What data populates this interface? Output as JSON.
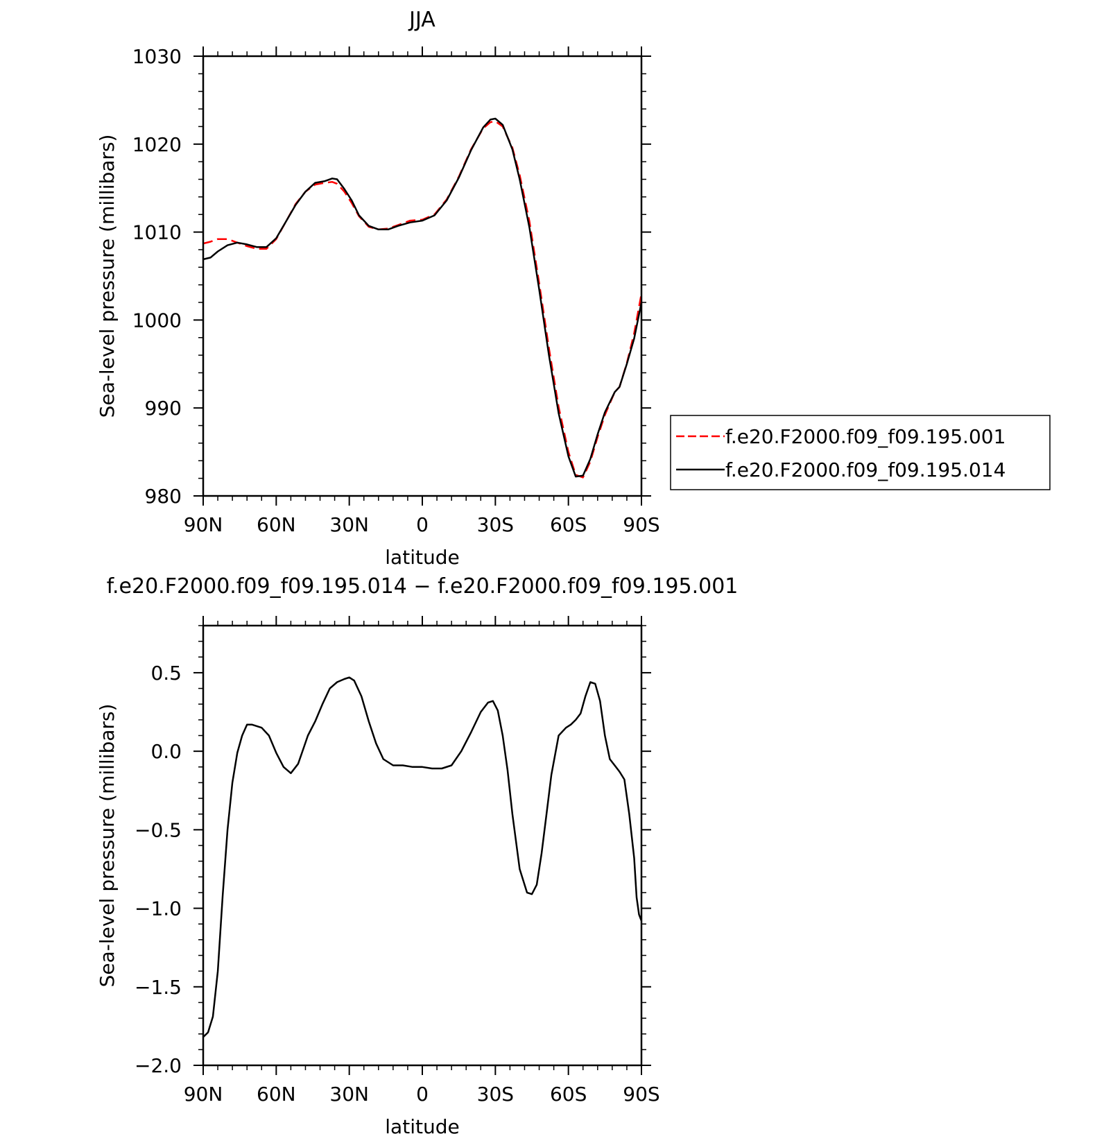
{
  "chart_data": [
    {
      "type": "line",
      "title": "JJA",
      "xlabel": "latitude",
      "ylabel": "Sea-level pressure (millibars)",
      "xlim": [
        90,
        -90
      ],
      "ylim": [
        980,
        1030
      ],
      "x_tick_values": [
        90,
        60,
        30,
        0,
        -30,
        -60,
        -90
      ],
      "x_tick_labels": [
        "90N",
        "60N",
        "30N",
        "0",
        "30S",
        "60S",
        "90S"
      ],
      "y_tick_values": [
        980,
        990,
        1000,
        1010,
        1020,
        1030
      ],
      "y_tick_labels": [
        "980",
        "990",
        "1000",
        "1010",
        "1020",
        "1030"
      ],
      "legend_position": "right",
      "series": [
        {
          "name": "f.e20.F2000.f09_f09.195.001",
          "color": "#ff0000",
          "dash": "dashed",
          "x": [
            90,
            87,
            84,
            80,
            76,
            72,
            68,
            64,
            60,
            56,
            52,
            48,
            44,
            40,
            37,
            35,
            32,
            29,
            26,
            22,
            18,
            14,
            10,
            5,
            0,
            -5,
            -10,
            -15,
            -20,
            -25,
            -28,
            -30,
            -33,
            -37,
            -40,
            -44,
            -48,
            -52,
            -56,
            -60,
            -63,
            -66,
            -69,
            -72,
            -75,
            -79,
            -81,
            -84,
            -87,
            -90
          ],
          "y": [
            1008.7,
            1008.9,
            1009.2,
            1009.2,
            1008.8,
            1008.4,
            1008.1,
            1008.1,
            1009.2,
            1011.2,
            1013.2,
            1014.6,
            1015.4,
            1015.6,
            1015.7,
            1015.5,
            1014.6,
            1013.3,
            1011.8,
            1010.6,
            1010.3,
            1010.4,
            1010.8,
            1011.3,
            1011.4,
            1012.0,
            1013.7,
            1016.3,
            1019.4,
            1021.8,
            1022.5,
            1022.6,
            1022.0,
            1019.6,
            1016.5,
            1011.2,
            1004.2,
            996.8,
            990.1,
            985.0,
            982.4,
            982.1,
            983.9,
            986.7,
            989.2,
            991.8,
            992.4,
            995.1,
            998.5,
            1003.0
          ]
        },
        {
          "name": "f.e20.F2000.f09_f09.195.014",
          "color": "#000000",
          "dash": "solid",
          "x": [
            90,
            87,
            84,
            80,
            76,
            72,
            68,
            64,
            60,
            56,
            52,
            48,
            44,
            40,
            37,
            35,
            32,
            29,
            26,
            22,
            18,
            14,
            10,
            5,
            0,
            -5,
            -10,
            -15,
            -20,
            -25,
            -28,
            -30,
            -33,
            -37,
            -40,
            -44,
            -48,
            -52,
            -56,
            -60,
            -63,
            -66,
            -69,
            -72,
            -75,
            -79,
            -81,
            -84,
            -87,
            -90
          ],
          "y": [
            1006.9,
            1007.1,
            1007.8,
            1008.5,
            1008.8,
            1008.6,
            1008.3,
            1008.3,
            1009.3,
            1011.2,
            1013.1,
            1014.6,
            1015.6,
            1015.8,
            1016.1,
            1016.0,
            1014.9,
            1013.6,
            1011.9,
            1010.7,
            1010.3,
            1010.3,
            1010.7,
            1011.1,
            1011.3,
            1011.9,
            1013.6,
            1016.2,
            1019.3,
            1021.9,
            1022.8,
            1022.9,
            1022.2,
            1019.4,
            1016.0,
            1010.5,
            1003.5,
            996.0,
            989.4,
            984.5,
            982.2,
            982.3,
            984.2,
            987.0,
            989.5,
            991.8,
            992.4,
            995.0,
            997.9,
            1002.0
          ]
        }
      ]
    },
    {
      "type": "line",
      "title": "f.e20.F2000.f09_f09.195.014 - f.e20.F2000.f09_f09.195.001",
      "xlabel": "latitude",
      "ylabel": "Sea-level pressure (millibars)",
      "xlim": [
        90,
        -90
      ],
      "ylim": [
        -2.0,
        0.8
      ],
      "x_tick_values": [
        90,
        60,
        30,
        0,
        -30,
        -60,
        -90
      ],
      "x_tick_labels": [
        "90N",
        "60N",
        "30N",
        "0",
        "30S",
        "60S",
        "90S"
      ],
      "y_tick_values": [
        -2.0,
        -1.5,
        -1.0,
        -0.5,
        0.0,
        0.5
      ],
      "y_tick_labels": [
        "-2.0",
        "-1.5",
        "-1.0",
        "-0.5",
        "0.0",
        "0.5"
      ],
      "series": [
        {
          "color": "#000000",
          "dash": "solid",
          "x": [
            90,
            88,
            86,
            84,
            82,
            80,
            78,
            76,
            74,
            72,
            70,
            68,
            66,
            63,
            60,
            57,
            54,
            51,
            49,
            47,
            44,
            41,
            38,
            35,
            32,
            30,
            28,
            25,
            22,
            19,
            16,
            12,
            8,
            4,
            0,
            -4,
            -8,
            -12,
            -16,
            -20,
            -24,
            -27,
            -29,
            -31,
            -33,
            -35,
            -37,
            -40,
            -43,
            -45,
            -47,
            -49,
            -51,
            -53,
            -56,
            -59,
            -61,
            -63,
            -65,
            -67,
            -69,
            -71,
            -73,
            -75,
            -77,
            -79,
            -81,
            -83,
            -85,
            -87,
            -88,
            -89,
            -90
          ],
          "y": [
            -1.82,
            -1.79,
            -1.69,
            -1.4,
            -0.92,
            -0.5,
            -0.2,
            -0.01,
            0.1,
            0.17,
            0.17,
            0.16,
            0.15,
            0.1,
            -0.01,
            -0.1,
            -0.14,
            -0.08,
            0.01,
            0.1,
            0.19,
            0.3,
            0.4,
            0.44,
            0.46,
            0.47,
            0.45,
            0.35,
            0.19,
            0.05,
            -0.05,
            -0.09,
            -0.09,
            -0.1,
            -0.1,
            -0.11,
            -0.11,
            -0.09,
            0.0,
            0.12,
            0.25,
            0.31,
            0.32,
            0.26,
            0.1,
            -0.12,
            -0.4,
            -0.75,
            -0.9,
            -0.91,
            -0.85,
            -0.65,
            -0.4,
            -0.15,
            0.1,
            0.15,
            0.17,
            0.2,
            0.24,
            0.35,
            0.44,
            0.43,
            0.32,
            0.1,
            -0.05,
            -0.09,
            -0.13,
            -0.18,
            -0.4,
            -0.68,
            -0.93,
            -1.04,
            -1.08
          ]
        }
      ]
    }
  ]
}
